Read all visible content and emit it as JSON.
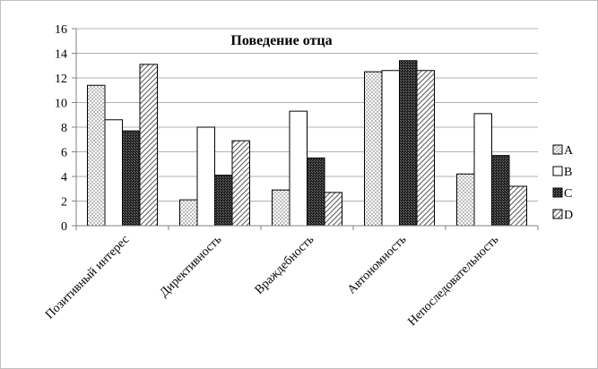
{
  "chart_data": {
    "type": "bar",
    "title": "Поведение отца",
    "categories": [
      "Позитивный интерес",
      "Директивность",
      "Враждебность",
      "Автономность",
      "Непоследовательность"
    ],
    "series": [
      {
        "name": "A",
        "values": [
          11.4,
          2.1,
          2.9,
          12.5,
          4.2
        ],
        "pattern": "dots"
      },
      {
        "name": "B",
        "values": [
          8.6,
          8.0,
          9.3,
          12.6,
          9.1
        ],
        "pattern": "white"
      },
      {
        "name": "C",
        "values": [
          7.7,
          4.1,
          5.5,
          13.4,
          5.7
        ],
        "pattern": "dark"
      },
      {
        "name": "D",
        "values": [
          13.1,
          6.9,
          2.7,
          12.6,
          3.2
        ],
        "pattern": "hatch"
      }
    ],
    "ylim": [
      0,
      16
    ],
    "yticks": [
      0,
      2,
      4,
      6,
      8,
      10,
      12,
      14,
      16
    ],
    "grid": true,
    "legend_position": "right"
  }
}
